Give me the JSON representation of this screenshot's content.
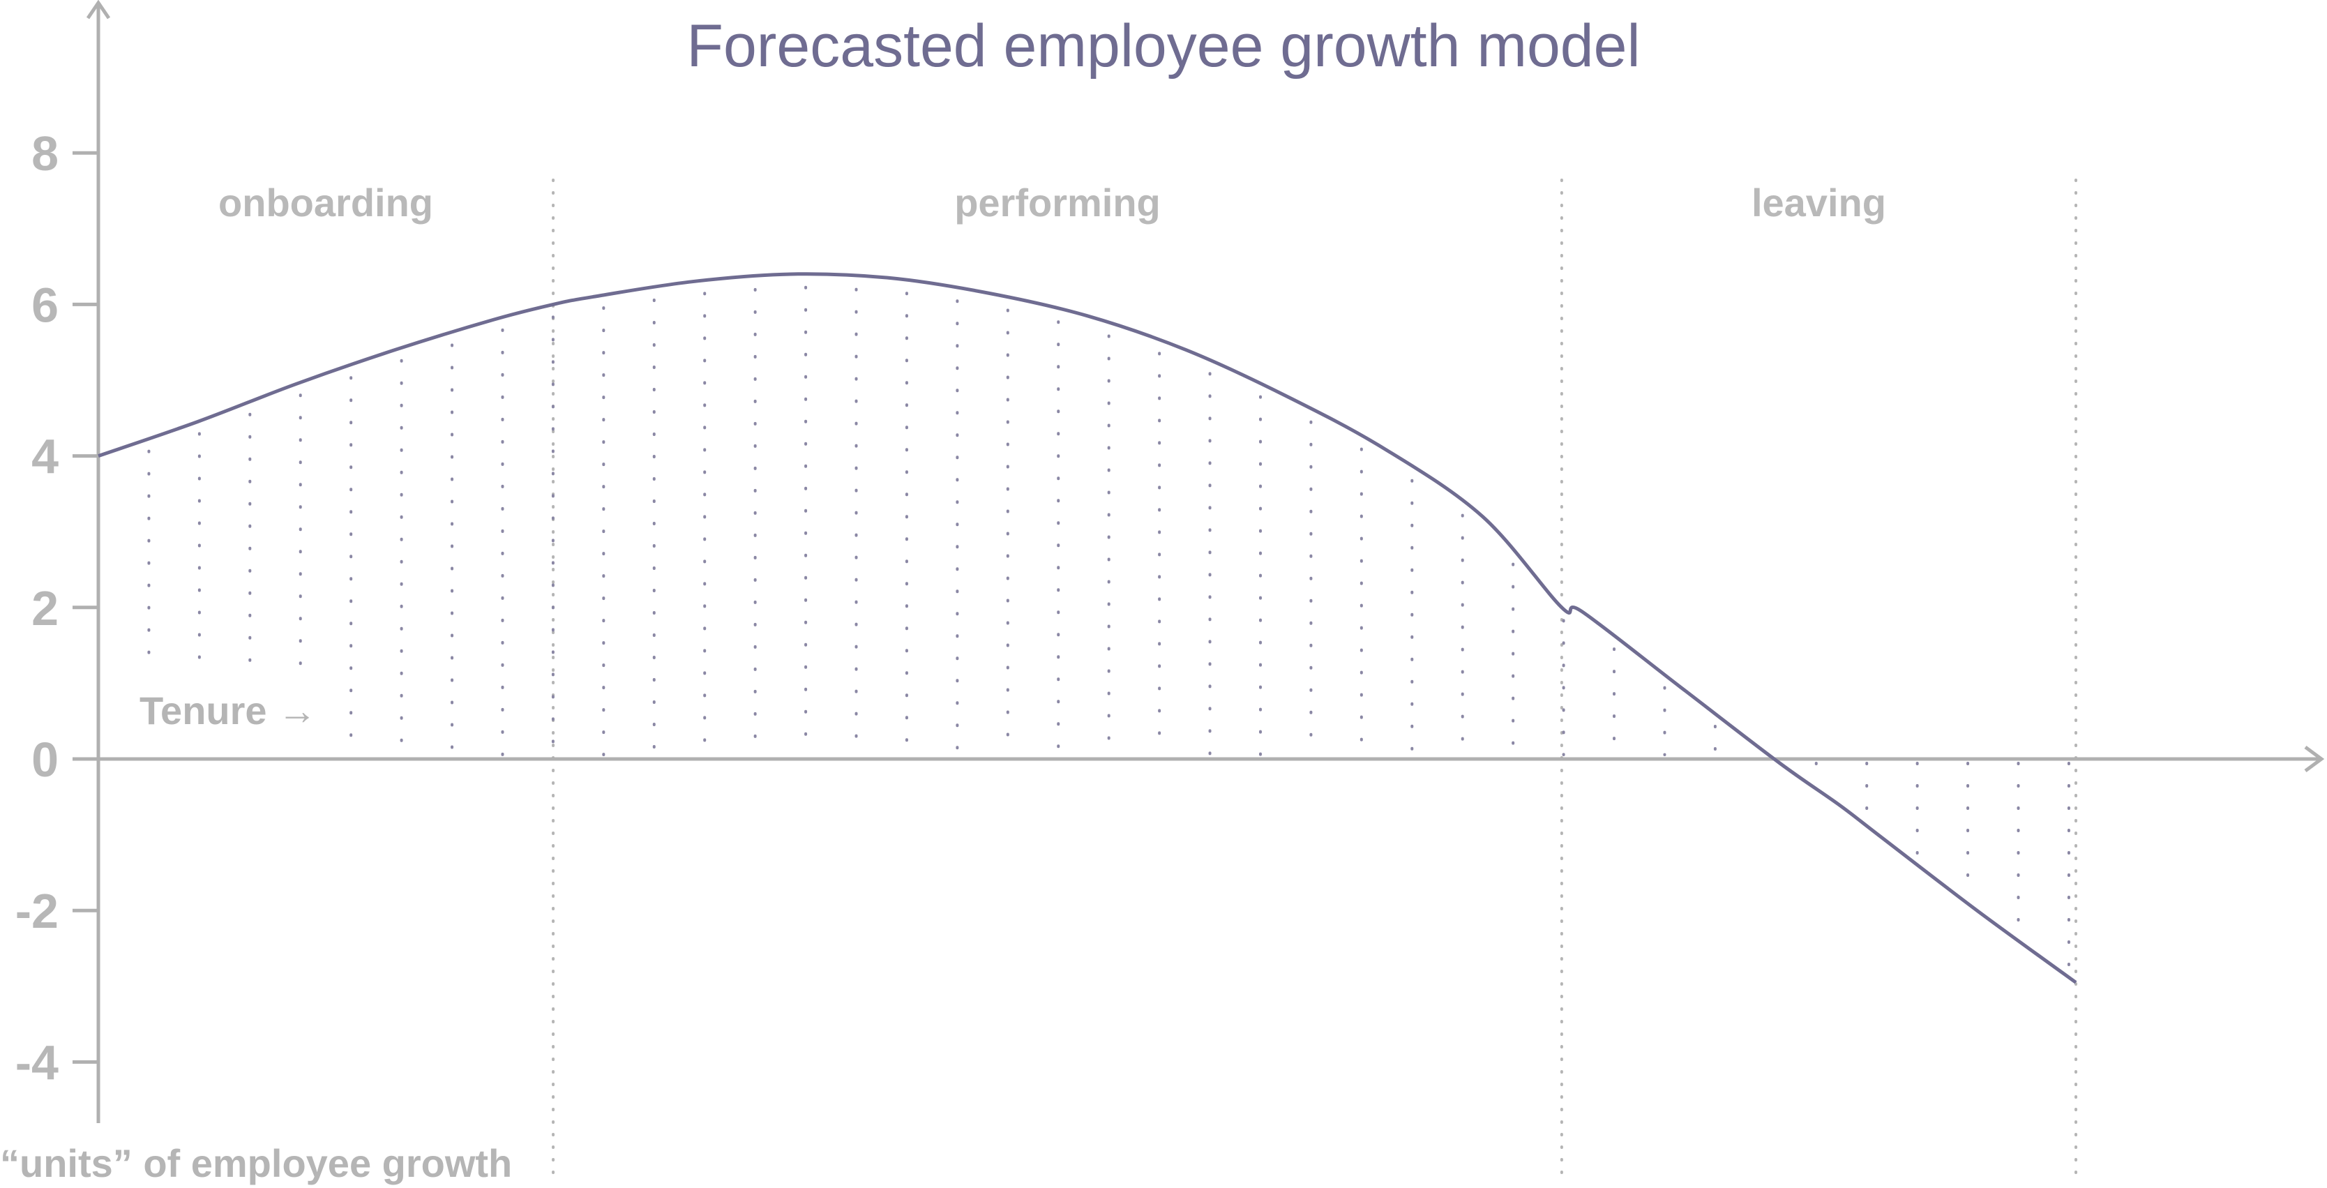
{
  "chart_data": {
    "type": "line",
    "title": "Forecasted employee growth model",
    "ylabel": "“units” of employee growth",
    "xlabel": "Tenure →",
    "ylim": [
      -4.8,
      9.8
    ],
    "xlim": [
      0,
      10.5
    ],
    "yticks": [
      8,
      6,
      4,
      2,
      0,
      -2,
      -4
    ],
    "ytick_labels": [
      "8",
      "6",
      "4",
      "2",
      "0",
      "-2",
      "-4"
    ],
    "x_show_ticks": false,
    "grid": false,
    "fill_under_curve": "dotted",
    "regions": [
      {
        "label": "onboarding",
        "x_start": 0,
        "x_end": 2.3
      },
      {
        "label": "performing",
        "x_start": 2.3,
        "x_end": 7.4
      },
      {
        "label": "leaving",
        "x_start": 7.4,
        "x_end": 10.0
      }
    ],
    "series": [
      {
        "x": [
          0,
          0.5,
          1.0,
          1.5,
          2.0,
          2.3,
          2.5,
          3.0,
          3.5,
          4.0,
          4.5,
          5.0,
          5.5,
          6.0,
          6.5,
          7.0,
          7.4,
          7.5,
          8.0,
          8.5,
          8.8,
          9.0,
          9.5,
          10.0
        ],
        "values": [
          4.0,
          4.45,
          4.95,
          5.4,
          5.8,
          6.0,
          6.1,
          6.3,
          6.4,
          6.35,
          6.15,
          5.85,
          5.4,
          4.8,
          4.1,
          3.2,
          2.0,
          1.95,
          0.95,
          -0.05,
          -0.6,
          -1.0,
          -2.0,
          -2.95
        ]
      }
    ],
    "colors": {
      "line": "#6f6c91",
      "axis": "#b0b0b0",
      "dots": "#8a87a4",
      "region_divider": "#b5b5b5"
    }
  }
}
